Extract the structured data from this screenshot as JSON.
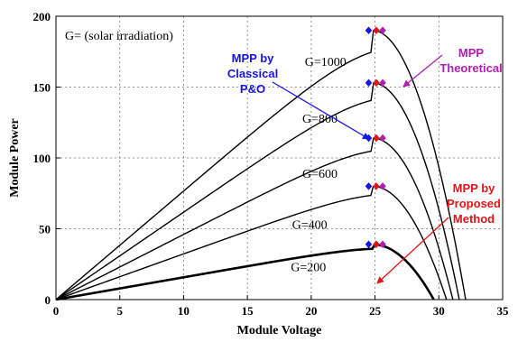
{
  "chart_data": {
    "type": "line",
    "xlabel": "Module Voltage",
    "ylabel": "Module Power",
    "xlim": [
      0,
      35
    ],
    "ylim": [
      0,
      200
    ],
    "xticks": [
      0,
      5,
      10,
      15,
      20,
      25,
      30,
      35
    ],
    "yticks": [
      0,
      50,
      100,
      150,
      200
    ],
    "grid": true,
    "note": "G= (solar irradiation)",
    "series": [
      {
        "name": "G=1000",
        "voc": 32.1,
        "vmp": 24.8,
        "pmp": 190
      },
      {
        "name": "G=800",
        "voc": 31.6,
        "vmp": 24.8,
        "pmp": 153
      },
      {
        "name": "G=600",
        "voc": 31.1,
        "vmp": 24.8,
        "pmp": 114
      },
      {
        "name": "G=400",
        "voc": 30.6,
        "vmp": 24.8,
        "pmp": 80
      },
      {
        "name": "G=200",
        "voc": 29.6,
        "vmp": 24.8,
        "pmp": 39
      }
    ],
    "mpp_markers": [
      {
        "label": "MPP by Classical P&O",
        "color": "#1515e6",
        "v": 24.5
      },
      {
        "label": "MPP by Proposed Method",
        "color": "#e01515",
        "v": 25.1
      },
      {
        "label": "MPP Theoretical",
        "color": "#b020b0",
        "v": 25.6
      }
    ],
    "annotations": [
      {
        "lines": [
          "MPP by",
          "Classical",
          "P&O"
        ],
        "color": "#1515e6"
      },
      {
        "lines": [
          "MPP",
          "Theoretical"
        ],
        "color": "#b020b0"
      },
      {
        "lines": [
          "MPP by",
          "Proposed",
          "Method"
        ],
        "color": "#e01515"
      }
    ]
  }
}
